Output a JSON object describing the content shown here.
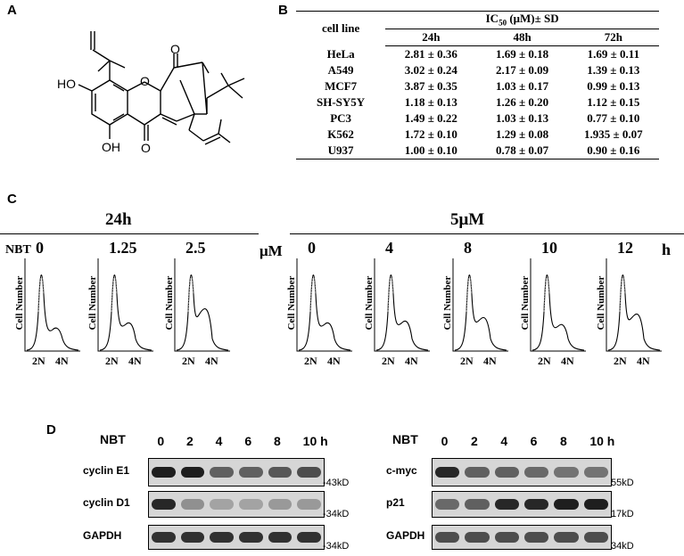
{
  "panels": {
    "a": "A",
    "b": "B",
    "c": "C",
    "d": "D"
  },
  "structure": {
    "substituents": [
      "HO",
      "OH",
      "O",
      "O",
      "O"
    ]
  },
  "table": {
    "row_header": "cell line",
    "group_header": "IC",
    "group_sub": "50",
    "group_tail": " (μM)± SD",
    "columns": [
      "24h",
      "48h",
      "72h"
    ],
    "rows": [
      {
        "cell": "HeLa",
        "v": [
          "2.81 ± 0.36",
          "1.69 ± 0.18",
          "1.69 ± 0.11"
        ]
      },
      {
        "cell": "A549",
        "v": [
          "3.02 ± 0.24",
          "2.17 ± 0.09",
          "1.39 ± 0.13"
        ]
      },
      {
        "cell": "MCF7",
        "v": [
          "3.87 ± 0.35",
          "1.03 ± 0.17",
          "0.99 ± 0.13"
        ]
      },
      {
        "cell": "SH-SY5Y",
        "v": [
          "1.18 ± 0.13",
          "1.26 ± 0.20",
          "1.12 ± 0.15"
        ]
      },
      {
        "cell": "PC3",
        "v": [
          "1.49 ± 0.22",
          "1.03 ± 0.13",
          "0.77 ± 0.10"
        ]
      },
      {
        "cell": "K562",
        "v": [
          "1.72 ± 0.10",
          "1.29 ± 0.08",
          "1.935 ± 0.07"
        ]
      },
      {
        "cell": "U937",
        "v": [
          "1.00 ± 0.10",
          "0.78 ± 0.07",
          "0.90 ± 0.16"
        ]
      }
    ]
  },
  "flow": {
    "left_header": "24h",
    "right_header": "5μM",
    "left_prefix": "NBT",
    "right_prefix": "μM",
    "unit_suffix": "h",
    "ylabel": "Cell Number",
    "xticks": [
      "2N",
      "4N"
    ],
    "left_labels": [
      "0",
      "1.25",
      "2.5"
    ],
    "right_labels": [
      "0",
      "4",
      "8",
      "10",
      "12"
    ]
  },
  "blot": {
    "left": {
      "prefix": "NBT",
      "lanes": [
        "0",
        "2",
        "4",
        "6",
        "8",
        "10 h"
      ],
      "bands": [
        {
          "name": "cyclin E1",
          "kd": "-43kD",
          "intensity": [
            0.95,
            0.95,
            0.6,
            0.6,
            0.65,
            0.7
          ]
        },
        {
          "name": "cyclin D1",
          "kd": "-34kD",
          "intensity": [
            0.9,
            0.35,
            0.25,
            0.25,
            0.3,
            0.3
          ]
        },
        {
          "name": "GAPDH",
          "kd": "-34kD",
          "intensity": [
            0.85,
            0.85,
            0.85,
            0.85,
            0.85,
            0.85
          ]
        }
      ]
    },
    "right": {
      "prefix": "NBT",
      "lanes": [
        "0",
        "2",
        "4",
        "6",
        "8",
        "10 h"
      ],
      "bands": [
        {
          "name": "c-myc",
          "kd": "55kD",
          "intensity": [
            0.9,
            0.6,
            0.6,
            0.55,
            0.5,
            0.5
          ]
        },
        {
          "name": "p21",
          "kd": "17kD",
          "intensity": [
            0.55,
            0.6,
            0.9,
            0.9,
            0.95,
            0.95
          ]
        },
        {
          "name": "GAPDH",
          "kd": "34kD",
          "intensity": [
            0.7,
            0.7,
            0.7,
            0.7,
            0.7,
            0.7
          ]
        }
      ]
    }
  }
}
